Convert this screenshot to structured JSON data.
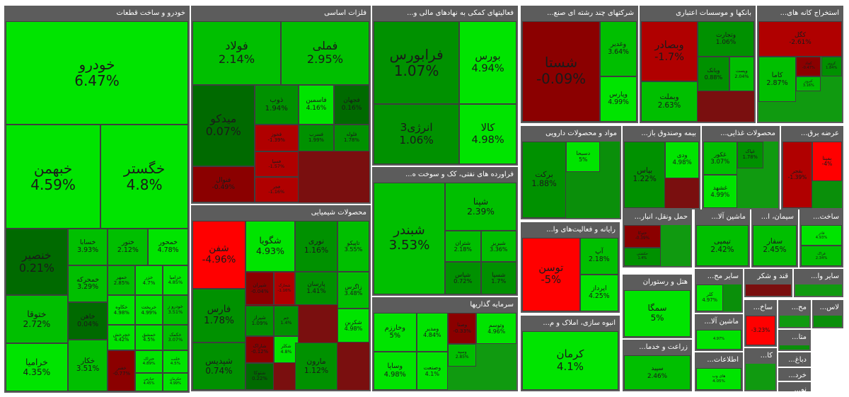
{
  "chart_data": {
    "type": "treemap",
    "colors": {
      "up_strong": "#00e400",
      "up_mid": "#00bf00",
      "up_low": "#009100",
      "flat": "#006a00",
      "down_low": "#8b0000",
      "down_mid": "#b00000",
      "down_strong": "#ff0000"
    },
    "sectors": [
      {
        "name": "خودرو و ساخت قطعات",
        "tiles": [
          {
            "name": "خودرو",
            "pct": "6.47%",
            "v": 6.47
          },
          {
            "name": "خبهمن",
            "pct": "4.59%",
            "v": 4.59
          },
          {
            "name": "خگستر",
            "pct": "4.8%",
            "v": 4.8
          },
          {
            "name": "خنصیر",
            "pct": "0.21%",
            "v": 0.21
          },
          {
            "name": "خسابا",
            "pct": "3.93%",
            "v": 3.93
          },
          {
            "name": "ختور",
            "pct": "2.12%",
            "v": 2.12
          },
          {
            "name": "خمحور",
            "pct": "4.78%",
            "v": 4.78
          },
          {
            "name": "ختوقا",
            "pct": "2.72%",
            "v": 2.72
          },
          {
            "name": "خمحرکه",
            "pct": "3.29%",
            "v": 3.29
          },
          {
            "name": "خمهر",
            "pct": "2.85%",
            "v": 2.85
          },
          {
            "name": "خزر",
            "pct": "4.7%",
            "v": 4.7
          },
          {
            "name": "خزامیا",
            "pct": "4.85%",
            "v": 4.85
          },
          {
            "name": "خاهن",
            "pct": "0.04%",
            "v": 0.04
          },
          {
            "name": "خکاوه",
            "pct": "4.98%",
            "v": 4.98
          },
          {
            "name": "خریخت",
            "pct": "4.99%",
            "v": 4.99
          },
          {
            "name": "خودرو ز",
            "pct": "3.51%",
            "v": 3.51
          },
          {
            "name": "خرامیا",
            "pct": "4.35%",
            "v": 4.35
          },
          {
            "name": "خچرخش",
            "pct": "4.42%",
            "v": 4.42
          },
          {
            "name": "خمشق",
            "pct": "4.5%",
            "v": 4.5
          },
          {
            "name": "خکمک",
            "pct": "3.07%",
            "v": 3.07
          },
          {
            "name": "ختراک",
            "pct": "4.89%",
            "v": 4.89
          },
          {
            "name": "خلنت",
            "pct": "4.5%",
            "v": 4.5
          },
          {
            "name": "خکار",
            "pct": "3.51%",
            "v": 3.51
          },
          {
            "name": "خفنر",
            "pct": "-0.77%",
            "v": -0.77
          },
          {
            "name": "خپارس",
            "pct": "4.45%",
            "v": 4.45
          },
          {
            "name": "خکرمان",
            "pct": "4.99%",
            "v": 4.99
          }
        ]
      },
      {
        "name": "فلزات اساسی",
        "tiles": [
          {
            "name": "فولاد",
            "pct": "2.14%",
            "v": 2.14
          },
          {
            "name": "فملی",
            "pct": "2.95%",
            "v": 2.95
          },
          {
            "name": "میدکو",
            "pct": "0.07%",
            "v": 0.07
          },
          {
            "name": "ذوب",
            "pct": "1.94%",
            "v": 1.94
          },
          {
            "name": "فاسمین",
            "pct": "4.16%",
            "v": 4.16
          },
          {
            "name": "فجهان",
            "pct": "0.16%",
            "v": 0.16
          },
          {
            "name": "فخوز",
            "pct": "-1.39%",
            "v": -1.39
          },
          {
            "name": "فسرب",
            "pct": "1.99%",
            "v": 1.99
          },
          {
            "name": "فلوله",
            "pct": "1.78%",
            "v": 1.78
          },
          {
            "name": "فسپا",
            "pct": "-1.57%",
            "v": -1.57
          },
          {
            "name": "فنوال",
            "pct": "-0.49%",
            "v": -0.49
          },
          {
            "name": "فجر",
            "pct": "-1.16%",
            "v": -1.16
          }
        ]
      },
      {
        "name": "فعالیتهای کمکی به نهادهای مالی و...",
        "tiles": [
          {
            "name": "فرابورس",
            "pct": "1.07%",
            "v": 1.07
          },
          {
            "name": "بورس",
            "pct": "4.94%",
            "v": 4.94
          },
          {
            "name": "انرژی3",
            "pct": "1.06%",
            "v": 1.06
          },
          {
            "name": "کالا",
            "pct": "4.98%",
            "v": 4.98
          }
        ]
      },
      {
        "name": "شرکتهای چند رشته ای صنع...",
        "tiles": [
          {
            "name": "شستا",
            "pct": "-0.09%",
            "v": -0.09
          },
          {
            "name": "وغدیر",
            "pct": "3.64%",
            "v": 3.64
          },
          {
            "name": "وپارس",
            "pct": "4.99%",
            "v": 4.99
          }
        ]
      },
      {
        "name": "بانکها و موسسات اعتباری",
        "tiles": [
          {
            "name": "وبصادر",
            "pct": "-1.7%",
            "v": -1.7
          },
          {
            "name": "وتجارت",
            "pct": "1.06%",
            "v": 1.06
          },
          {
            "name": "وبملت",
            "pct": "2.63%",
            "v": 2.63
          },
          {
            "name": "وبانک",
            "pct": "0.88%",
            "v": 0.88
          },
          {
            "name": "وپست",
            "pct": "2.04%",
            "v": 2.04
          }
        ]
      },
      {
        "name": "استخراج کانه های...",
        "tiles": [
          {
            "name": "کگل",
            "pct": "-2.61%",
            "v": -2.61
          },
          {
            "name": "کاما",
            "pct": "2.87%",
            "v": 2.87
          },
          {
            "name": "کچاد",
            "pct": "-0.47%",
            "v": -0.47
          },
          {
            "name": "کروی",
            "pct": "1.84%",
            "v": 1.84
          },
          {
            "name": "کپرور",
            "pct": "3.16%",
            "v": 3.16
          }
        ]
      },
      {
        "name": "فراورده های نفتی، کک و سوخت ه...",
        "tiles": [
          {
            "name": "شبندر",
            "pct": "3.53%",
            "v": 3.53
          },
          {
            "name": "شپنا",
            "pct": "2.39%",
            "v": 2.39
          },
          {
            "name": "شتران",
            "pct": "2.18%",
            "v": 2.18
          },
          {
            "name": "شبریز",
            "pct": "3.36%",
            "v": 3.36
          },
          {
            "name": "شپاس",
            "pct": "0.72%",
            "v": 0.72
          },
          {
            "name": "شسپا",
            "pct": "1.7%",
            "v": 1.7
          }
        ]
      },
      {
        "name": "محصولات شیمیایی",
        "tiles": [
          {
            "name": "شفن",
            "pct": "-4.96%",
            "v": -4.96
          },
          {
            "name": "شگویا",
            "pct": "4.93%",
            "v": 4.93
          },
          {
            "name": "نوری",
            "pct": "1.16%",
            "v": 1.16
          },
          {
            "name": "تاپیکو",
            "pct": "3.55%",
            "v": 3.55
          },
          {
            "name": "فارس",
            "pct": "1.78%",
            "v": 1.78
          },
          {
            "name": "شپدیس",
            "pct": "0.74%",
            "v": 0.74
          },
          {
            "name": "زاگرس",
            "pct": "3.48%",
            "v": 3.48
          },
          {
            "name": "پارسان",
            "pct": "1.41%",
            "v": 1.41
          },
          {
            "name": "شیران",
            "pct": "-0.04%",
            "v": -0.04
          },
          {
            "name": "شخارک",
            "pct": "-1.16%",
            "v": -1.16
          },
          {
            "name": "شیراز",
            "pct": "1.09%",
            "v": 1.09
          },
          {
            "name": "جم",
            "pct": "1.4%",
            "v": 1.4
          },
          {
            "name": "شکربن",
            "pct": "4.98%",
            "v": 4.98
          },
          {
            "name": "شاراک",
            "pct": "-0.12%",
            "v": -0.12
          },
          {
            "name": "شکلر",
            "pct": "4.8%",
            "v": 4.8
          },
          {
            "name": "مارون",
            "pct": "1.12%",
            "v": 1.12
          },
          {
            "name": "شتوکا",
            "pct": "0.22%",
            "v": 0.22
          }
        ]
      },
      {
        "name": "سرمایه گذاریها",
        "tiles": [
          {
            "name": "وخارزم",
            "pct": "5%",
            "v": 5
          },
          {
            "name": "ومدیر",
            "pct": "4.84%",
            "v": 4.84
          },
          {
            "name": "وتوسم",
            "pct": "4.96%",
            "v": 4.96
          },
          {
            "name": "وسپه",
            "pct": "2.85%",
            "v": 2.85
          },
          {
            "name": "وصنا",
            "pct": "-0.33%",
            "v": -0.33
          },
          {
            "name": "وسایا",
            "pct": "4.98%",
            "v": 4.98
          },
          {
            "name": "وصنعت",
            "pct": "4.1%",
            "v": 4.1
          }
        ]
      },
      {
        "name": "مواد و محصولات دارویی",
        "tiles": [
          {
            "name": "برکت",
            "pct": "1.88%",
            "v": 1.88
          },
          {
            "name": "دسبحا",
            "pct": "5%",
            "v": 5
          }
        ]
      },
      {
        "name": "بیمه وصندوق باز...",
        "tiles": [
          {
            "name": "بپاس",
            "pct": "1.22%",
            "v": 1.22
          },
          {
            "name": "ودی",
            "pct": "4.98%",
            "v": 4.98
          }
        ]
      },
      {
        "name": "محصولات غذایی...",
        "tiles": [
          {
            "name": "غکور",
            "pct": "3.07%",
            "v": 3.07
          },
          {
            "name": "غپاک",
            "pct": "1.78%",
            "v": 1.78
          },
          {
            "name": "غشهد",
            "pct": "4.99%",
            "v": 4.99
          }
        ]
      },
      {
        "name": "عرضه برق...",
        "tiles": [
          {
            "name": "بفجر",
            "pct": "-1.39%",
            "v": -1.39
          },
          {
            "name": "بمپنا",
            "pct": "-4%",
            "v": -4
          }
        ]
      },
      {
        "name": "رایانه و فعالیت‌های وا...",
        "tiles": [
          {
            "name": "توسن",
            "pct": "-5%",
            "v": -5
          },
          {
            "name": "آپ",
            "pct": "2.18%",
            "v": 2.18
          },
          {
            "name": "اپرداز",
            "pct": "4.25%",
            "v": 4.25
          }
        ]
      },
      {
        "name": "حمل ونقل، انبار...",
        "tiles": [
          {
            "name": "حتوکا",
            "pct": "-0.39%",
            "v": -0.39
          },
          {
            "name": "حکشتی",
            "pct": "1.4%",
            "v": 1.4
          }
        ]
      },
      {
        "name": "ماشین آلا...",
        "tiles": [
          {
            "name": "تپمپی",
            "pct": "2.42%",
            "v": 2.42
          }
        ]
      },
      {
        "name": "سیمان، ا...",
        "tiles": [
          {
            "name": "سفار",
            "pct": "2.45%",
            "v": 2.45
          }
        ]
      },
      {
        "name": "ساخت...",
        "tiles": [
          {
            "name": "فاذر",
            "pct": "4.93%",
            "v": 4.93
          },
          {
            "name": "فراک",
            "pct": "2.34%",
            "v": 2.34
          }
        ]
      },
      {
        "name": "انبوه سازی، املاک و م...",
        "tiles": [
          {
            "name": "کرمان",
            "pct": "4.1%",
            "v": 4.1
          }
        ]
      },
      {
        "name": "هتل و رستوران",
        "tiles": [
          {
            "name": "سمگا",
            "pct": "5%",
            "v": 5
          }
        ]
      },
      {
        "name": "زراعت و خدما...",
        "tiles": [
          {
            "name": "سپید",
            "pct": "2.46%",
            "v": 2.46
          }
        ]
      },
      {
        "name": "ساير مح...",
        "tiles": [
          {
            "name": "کلر",
            "pct": "4.97%",
            "v": 4.97
          }
        ]
      },
      {
        "name": "قند و شکر",
        "tiles": []
      },
      {
        "name": "سایر وا...",
        "tiles": []
      },
      {
        "name": "ماشین آلا...",
        "tiles": [
          {
            "name": "",
            "pct": "4.97%",
            "v": 4.97
          }
        ]
      },
      {
        "name": "ساخ...",
        "tiles": [
          {
            "name": "",
            "pct": "-3.23%",
            "v": -3.23
          }
        ]
      },
      {
        "name": "مح...",
        "tiles": []
      },
      {
        "name": "لاس...",
        "tiles": []
      },
      {
        "name": "اطلاعات...",
        "tiles": [
          {
            "name": "های وب",
            "pct": "4.05%",
            "v": 4.05
          }
        ]
      },
      {
        "name": "کا...",
        "tiles": []
      },
      {
        "name": "متا...",
        "tiles": []
      },
      {
        "name": "دباغ...",
        "tiles": []
      },
      {
        "name": "خرد...",
        "tiles": []
      },
      {
        "name": "نو...",
        "tiles": []
      }
    ]
  }
}
